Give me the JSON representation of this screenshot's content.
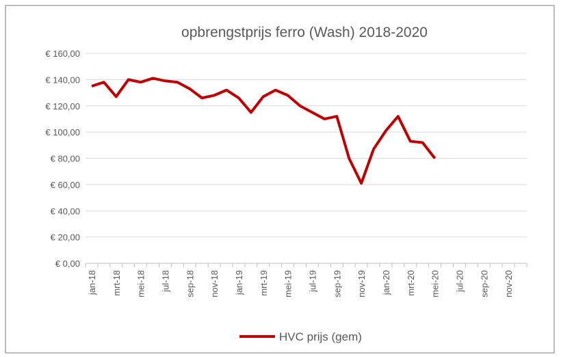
{
  "chart_data": {
    "type": "line",
    "title": "opbrengstprijs ferro (Wash) 2018-2020",
    "categories": [
      "jan-18",
      null,
      "mrt-18",
      null,
      "mei-18",
      null,
      "jul-18",
      null,
      "sep-18",
      null,
      "nov-18",
      null,
      "jan-19",
      null,
      "mrt-19",
      null,
      "mei-19",
      null,
      "jul-19",
      null,
      "sep-19",
      null,
      "nov-19",
      null,
      "jan-20",
      null,
      "mrt-20",
      null,
      "mei-20",
      null,
      "jul-20",
      null,
      "sep-20",
      null,
      "nov-20",
      null
    ],
    "series": [
      {
        "name": "HVC prijs (gem)",
        "color": "#c00000",
        "values": [
          135,
          138,
          127,
          140,
          138,
          141,
          139,
          138,
          133,
          126,
          128,
          132,
          126,
          115,
          127,
          132,
          128,
          120,
          115,
          110,
          112,
          80,
          61,
          87,
          101,
          112,
          93,
          92,
          80,
          null,
          null,
          null,
          null,
          null,
          null,
          null
        ]
      }
    ],
    "ylim": [
      0,
      160
    ],
    "yticks": [
      {
        "value": 0,
        "label": "€ 0,00"
      },
      {
        "value": 20,
        "label": "€ 20,00"
      },
      {
        "value": 40,
        "label": "€ 40,00"
      },
      {
        "value": 60,
        "label": "€ 60,00"
      },
      {
        "value": 80,
        "label": "€ 80,00"
      },
      {
        "value": 100,
        "label": "€ 100,00"
      },
      {
        "value": 120,
        "label": "€ 120,00"
      },
      {
        "value": 140,
        "label": "€ 140,00"
      },
      {
        "value": 160,
        "label": "€ 160,00"
      }
    ],
    "grid": true,
    "legend": "bottom"
  }
}
